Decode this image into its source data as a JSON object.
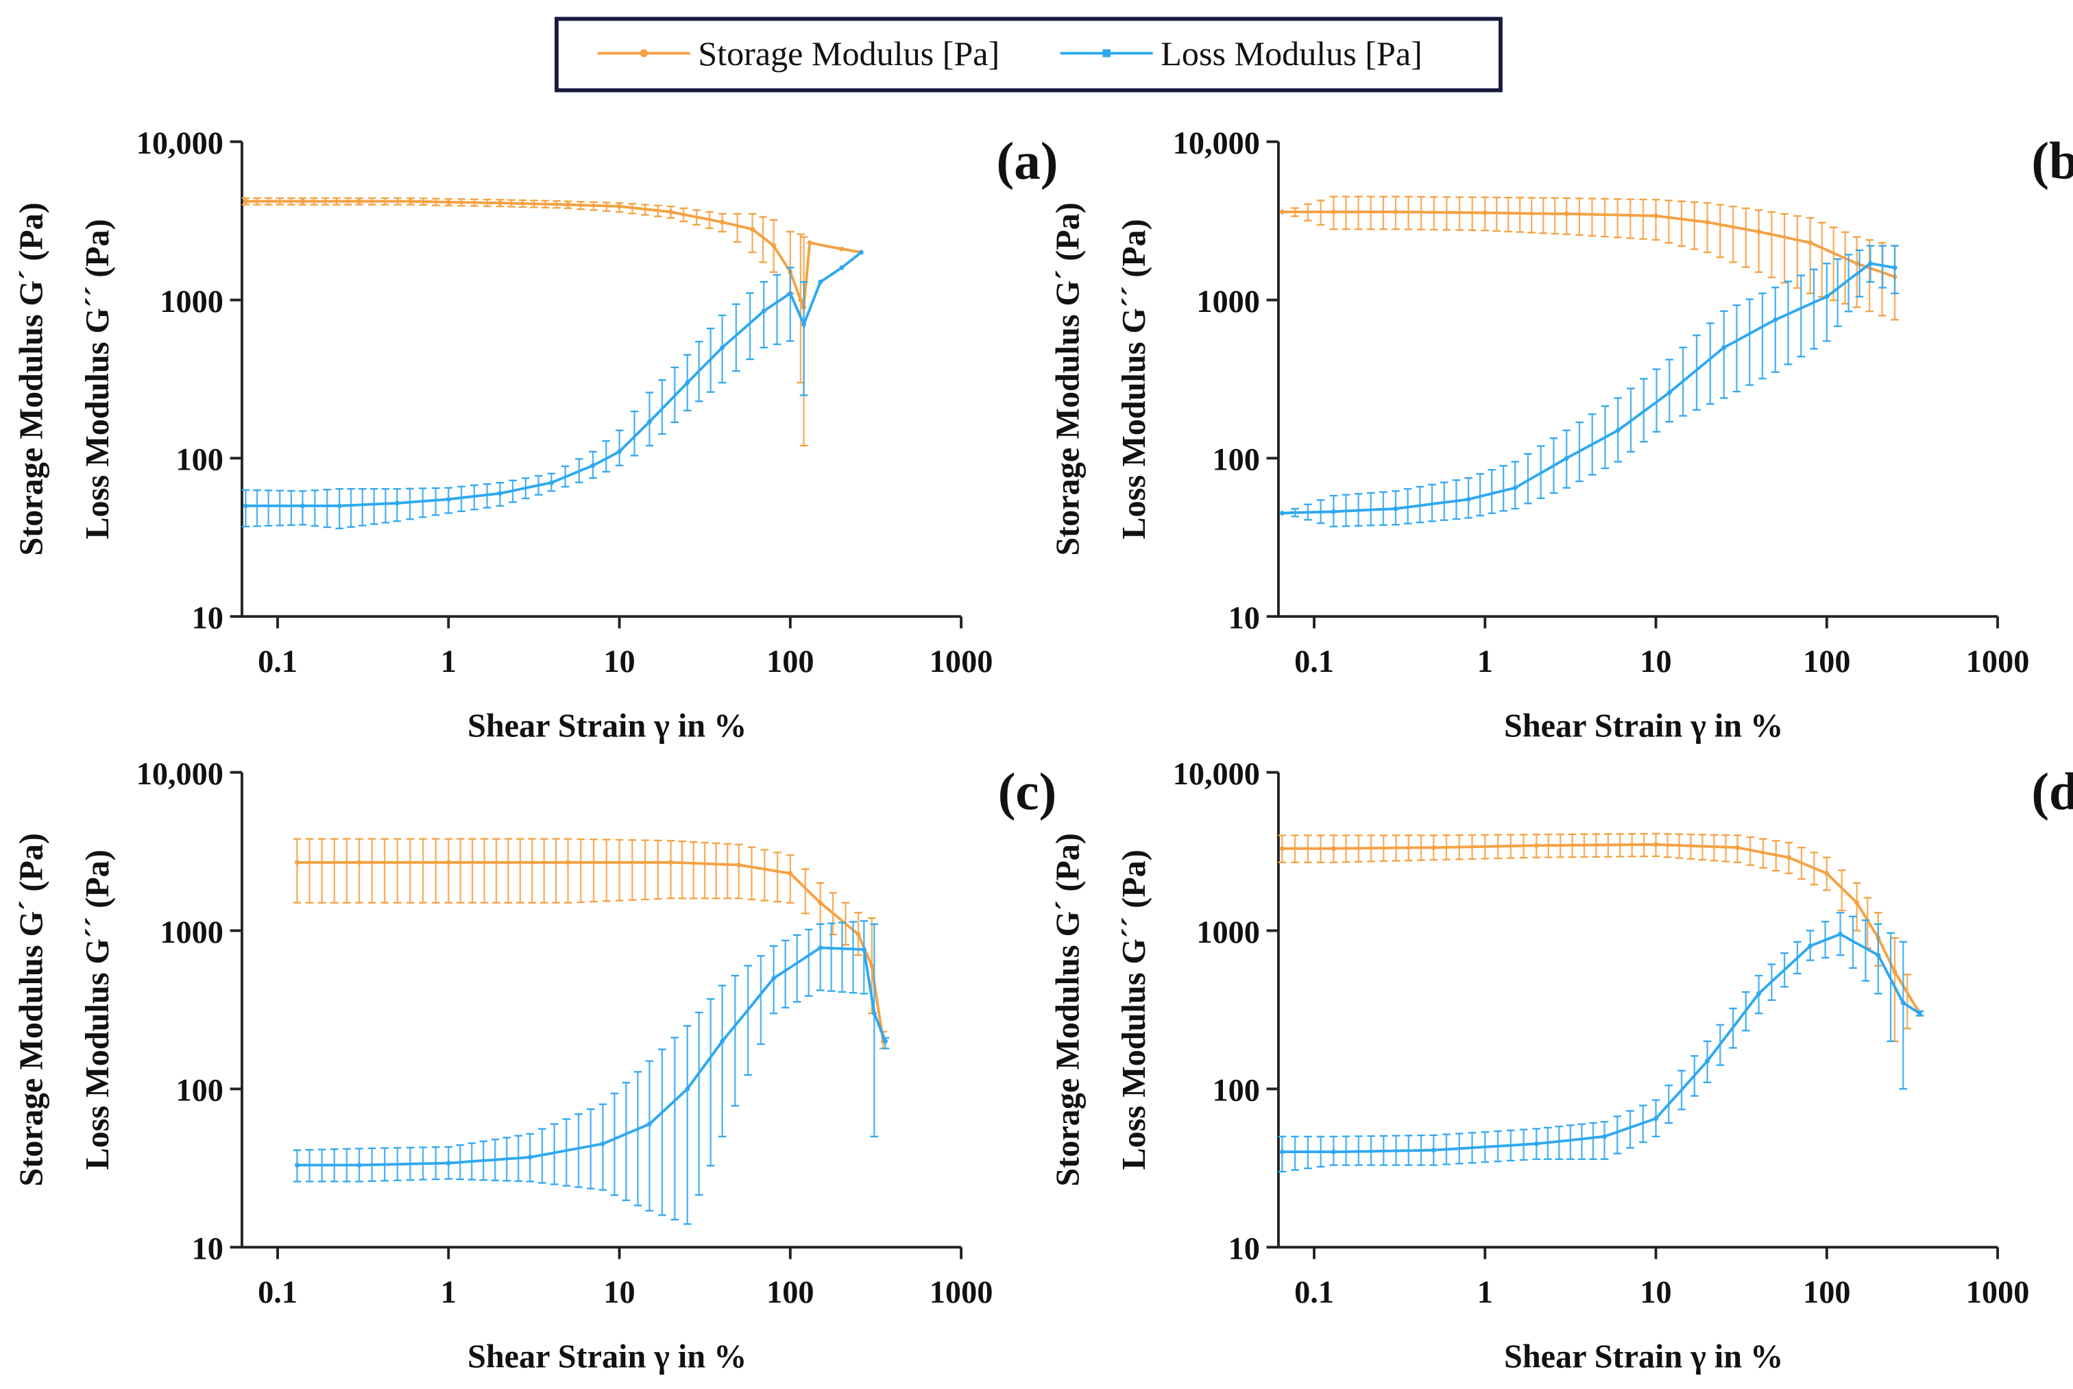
{
  "legend": {
    "storage": "Storage Modulus [Pa]",
    "loss": "Loss Modulus [Pa]"
  },
  "colors": {
    "storage": "#F5A142",
    "loss": "#2FA8F0",
    "axis": "#222222",
    "legend_border": "#1a1a40"
  },
  "chart_data": [
    {
      "type": "line",
      "panel": "(a)",
      "xlabel": "Shear Strain γ in %",
      "ylabel": [
        "Storage Modulus G´ (Pa)",
        "Loss Modulus G´´ (Pa)"
      ],
      "xscale": "log",
      "yscale": "log",
      "xlim": [
        0.065,
        1000
      ],
      "ylim": [
        10,
        10000
      ],
      "xticks": [
        "0.1",
        "1",
        "10",
        "100",
        "1000"
      ],
      "yticks": [
        "10",
        "100",
        "1000",
        "10,000"
      ],
      "series": [
        {
          "name": "Storage Modulus [Pa]",
          "points": [
            [
              0.065,
              4200,
              4000,
              4400
            ],
            [
              0.14,
              4200,
              4000,
              4400
            ],
            [
              0.3,
              4200,
              4000,
              4400
            ],
            [
              0.6,
              4200,
              4000,
              4400
            ],
            [
              1,
              4150,
              3950,
              4350
            ],
            [
              2,
              4100,
              3900,
              4300
            ],
            [
              5,
              4000,
              3800,
              4200
            ],
            [
              10,
              3900,
              3600,
              4100
            ],
            [
              20,
              3600,
              3300,
              3900
            ],
            [
              40,
              3100,
              2700,
              3500
            ],
            [
              60,
              2800,
              2000,
              3500
            ],
            [
              80,
              2200,
              1500,
              3200
            ],
            [
              100,
              1500,
              1100,
              2700
            ],
            [
              115,
              1000,
              300,
              2600
            ],
            [
              120,
              900,
              120,
              2500
            ],
            [
              130,
              2300,
              2300,
              2300
            ],
            [
              200,
              2100,
              2100,
              2100
            ],
            [
              260,
              2000,
              2000,
              2000
            ]
          ]
        },
        {
          "name": "Loss Modulus [Pa]",
          "points": [
            [
              0.065,
              50,
              37,
              63
            ],
            [
              0.14,
              50,
              38,
              62
            ],
            [
              0.23,
              50,
              36,
              64
            ],
            [
              0.5,
              52,
              40,
              64
            ],
            [
              1,
              55,
              45,
              65
            ],
            [
              2,
              60,
              50,
              70
            ],
            [
              4,
              70,
              62,
              80
            ],
            [
              7,
              90,
              75,
              110
            ],
            [
              10,
              110,
              90,
              150
            ],
            [
              15,
              170,
              120,
              260
            ],
            [
              25,
              300,
              200,
              450
            ],
            [
              40,
              500,
              300,
              800
            ],
            [
              70,
              850,
              500,
              1300
            ],
            [
              100,
              1100,
              550,
              1600
            ],
            [
              120,
              700,
              250,
              1300
            ],
            [
              150,
              1300,
              1300,
              1300
            ],
            [
              200,
              1600,
              1600,
              1600
            ],
            [
              260,
              2000,
              2000,
              2000
            ]
          ]
        }
      ]
    },
    {
      "type": "line",
      "panel": "(b)",
      "xlabel": "Shear Strain γ in %",
      "ylabel": [
        "Storage Modulus G´ (Pa)",
        "Loss Modulus G´´ (Pa)"
      ],
      "xscale": "log",
      "yscale": "log",
      "xlim": [
        0.065,
        1000
      ],
      "ylim": [
        10,
        10000
      ],
      "xticks": [
        "0.1",
        "1",
        "10",
        "100",
        "1000"
      ],
      "yticks": [
        "10",
        "100",
        "1000",
        "10,000"
      ],
      "series": [
        {
          "name": "Storage Modulus [Pa]",
          "points": [
            [
              0.065,
              3600,
              3600,
              3600
            ],
            [
              0.13,
              3600,
              2800,
              4500
            ],
            [
              0.3,
              3600,
              2800,
              4500
            ],
            [
              1,
              3550,
              2750,
              4450
            ],
            [
              3,
              3500,
              2600,
              4400
            ],
            [
              10,
              3400,
              2400,
              4300
            ],
            [
              20,
              3100,
              2000,
              4100
            ],
            [
              40,
              2700,
              1500,
              3700
            ],
            [
              80,
              2300,
              1100,
              3300
            ],
            [
              150,
              1700,
              900,
              2500
            ],
            [
              250,
              1400,
              750,
              2200
            ]
          ]
        },
        {
          "name": "Loss Modulus [Pa]",
          "points": [
            [
              0.065,
              45,
              45,
              45
            ],
            [
              0.13,
              46,
              37,
              58
            ],
            [
              0.3,
              48,
              38,
              62
            ],
            [
              0.8,
              55,
              42,
              75
            ],
            [
              1.5,
              65,
              48,
              95
            ],
            [
              3,
              100,
              65,
              150
            ],
            [
              6,
              150,
              95,
              240
            ],
            [
              12,
              260,
              170,
              420
            ],
            [
              25,
              500,
              240,
              850
            ],
            [
              50,
              750,
              350,
              1200
            ],
            [
              100,
              1050,
              550,
              1700
            ],
            [
              180,
              1700,
              1300,
              2200
            ],
            [
              250,
              1600,
              1100,
              2200
            ]
          ]
        }
      ]
    },
    {
      "type": "line",
      "panel": "(c)",
      "xlabel": "Shear Strain γ in %",
      "ylabel": [
        "Storage Modulus G´ (Pa)",
        "Loss Modulus G´´ (Pa)"
      ],
      "xscale": "log",
      "yscale": "log",
      "xlim": [
        0.065,
        1000
      ],
      "ylim": [
        10,
        10000
      ],
      "xticks": [
        "0.1",
        "1",
        "10",
        "100",
        "1000"
      ],
      "yticks": [
        "10",
        "100",
        "1000",
        "10,000"
      ],
      "series": [
        {
          "name": "Storage Modulus [Pa]",
          "points": [
            [
              0.13,
              2700,
              1500,
              3800
            ],
            [
              0.3,
              2700,
              1500,
              3800
            ],
            [
              1,
              2700,
              1500,
              3800
            ],
            [
              5,
              2700,
              1500,
              3800
            ],
            [
              20,
              2700,
              1600,
              3700
            ],
            [
              50,
              2600,
              1600,
              3500
            ],
            [
              100,
              2300,
              1500,
              3000
            ],
            [
              150,
              1500,
              1100,
              2000
            ],
            [
              250,
              950,
              700,
              1300
            ],
            [
              300,
              600,
              300,
              1200
            ],
            [
              350,
              200,
              180,
              230
            ]
          ]
        },
        {
          "name": "Loss Modulus [Pa]",
          "points": [
            [
              0.13,
              33,
              26,
              41
            ],
            [
              0.3,
              33,
              26,
              42
            ],
            [
              1,
              34,
              27,
              43
            ],
            [
              3,
              37,
              26,
              52
            ],
            [
              8,
              45,
              23,
              80
            ],
            [
              15,
              60,
              17,
              150
            ],
            [
              25,
              100,
              14,
              250
            ],
            [
              40,
              200,
              50,
              450
            ],
            [
              80,
              500,
              300,
              800
            ],
            [
              150,
              780,
              420,
              1100
            ],
            [
              270,
              760,
              400,
              1150
            ],
            [
              310,
              300,
              50,
              1100
            ],
            [
              360,
              200,
              180,
              210
            ]
          ]
        }
      ]
    },
    {
      "type": "line",
      "panel": "(d)",
      "xlabel": "Shear Strain γ in %",
      "ylabel": [
        "Storage Modulus G´ (Pa)",
        "Loss Modulus G´´ (Pa)"
      ],
      "xscale": "log",
      "yscale": "log",
      "xlim": [
        0.065,
        1000
      ],
      "ylim": [
        10,
        10000
      ],
      "xticks": [
        "0.1",
        "1",
        "10",
        "100",
        "1000"
      ],
      "yticks": [
        "10",
        "100",
        "1000",
        "10,000"
      ],
      "series": [
        {
          "name": "Storage Modulus [Pa]",
          "points": [
            [
              0.065,
              3300,
              2700,
              4000
            ],
            [
              0.13,
              3300,
              2700,
              4000
            ],
            [
              0.5,
              3350,
              2800,
              4000
            ],
            [
              2,
              3450,
              2900,
              4050
            ],
            [
              10,
              3500,
              2950,
              4100
            ],
            [
              30,
              3350,
              2700,
              4000
            ],
            [
              60,
              2900,
              2300,
              3600
            ],
            [
              100,
              2300,
              1800,
              2900
            ],
            [
              150,
              1500,
              1000,
              2000
            ],
            [
              200,
              900,
              600,
              1300
            ],
            [
              250,
              550,
              200,
              900
            ],
            [
              350,
              300,
              290,
              310
            ]
          ]
        },
        {
          "name": "Loss Modulus [Pa]",
          "points": [
            [
              0.065,
              40,
              30,
              50
            ],
            [
              0.13,
              40,
              33,
              50
            ],
            [
              0.5,
              41,
              33,
              51
            ],
            [
              2,
              45,
              36,
              56
            ],
            [
              5,
              50,
              36,
              62
            ],
            [
              10,
              65,
              50,
              85
            ],
            [
              20,
              150,
              110,
              200
            ],
            [
              40,
              400,
              300,
              520
            ],
            [
              80,
              800,
              650,
              1000
            ],
            [
              120,
              950,
              700,
              1300
            ],
            [
              200,
              700,
              400,
              1100
            ],
            [
              280,
              350,
              100,
              850
            ],
            [
              350,
              300,
              290,
              310
            ]
          ]
        }
      ]
    }
  ]
}
